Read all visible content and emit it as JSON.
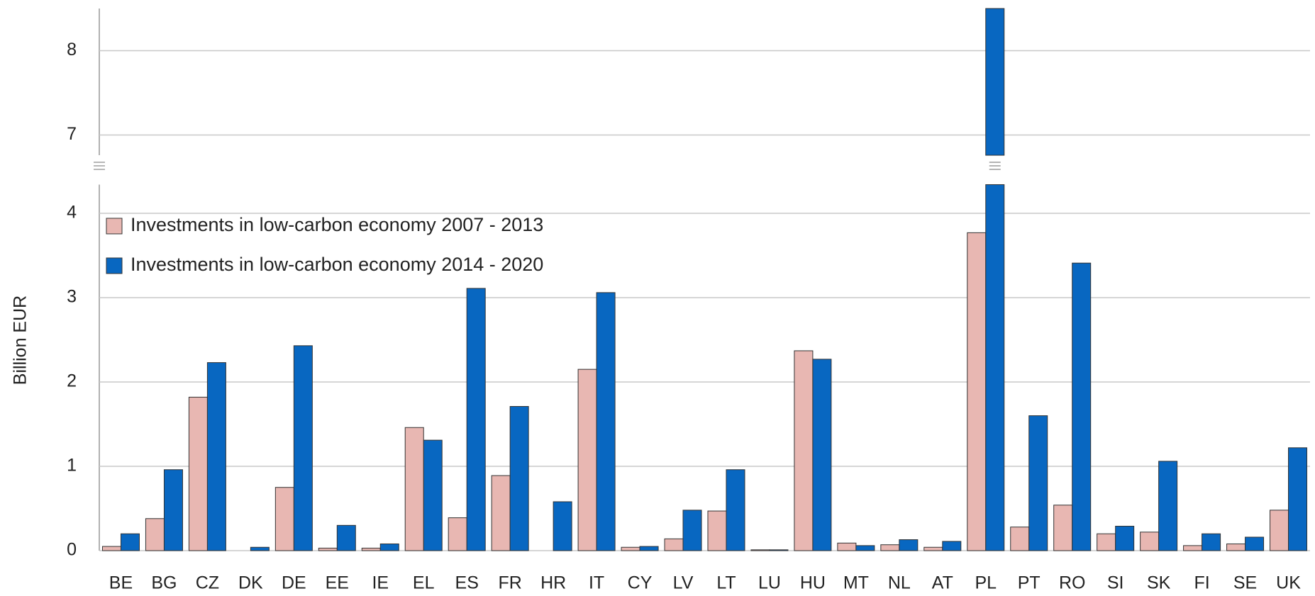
{
  "chart_data": {
    "type": "bar",
    "y_label": "Billion EUR",
    "categories": [
      "BE",
      "BG",
      "CZ",
      "DK",
      "DE",
      "EE",
      "IE",
      "EL",
      "ES",
      "FR",
      "HR",
      "IT",
      "CY",
      "LV",
      "LT",
      "LU",
      "HU",
      "MT",
      "NL",
      "AT",
      "PL",
      "PT",
      "RO",
      "SI",
      "SK",
      "FI",
      "SE",
      "UK"
    ],
    "series": [
      {
        "name": "Investments in low-carbon economy 2007 - 2013",
        "color": "#e8b7b2",
        "values": [
          0.05,
          0.38,
          1.82,
          0,
          0.75,
          0.03,
          0.03,
          1.46,
          0.39,
          0.89,
          0,
          2.15,
          0.04,
          0.14,
          0.47,
          0.01,
          2.37,
          0.09,
          0.07,
          0.04,
          3.77,
          0.28,
          0.54,
          0.2,
          0.22,
          0.06,
          0.08,
          0.48
        ]
      },
      {
        "name": "Investments in low-carbon economy 2014 - 2020",
        "color": "#0867c1",
        "values": [
          0.2,
          0.96,
          2.23,
          0.04,
          2.43,
          0.3,
          0.08,
          1.31,
          3.11,
          1.71,
          0.58,
          3.06,
          0.05,
          0.48,
          0.96,
          0.01,
          2.27,
          0.06,
          0.13,
          0.11,
          8.5,
          1.6,
          3.41,
          0.29,
          1.06,
          0.2,
          0.16,
          1.22
        ]
      }
    ],
    "ylim": [
      0,
      8.5
    ],
    "axis_break": [
      4.34,
      6.76
    ],
    "yticks": [
      0,
      1,
      2,
      3,
      4,
      7,
      8
    ],
    "grid": true,
    "legend": "upper left"
  }
}
